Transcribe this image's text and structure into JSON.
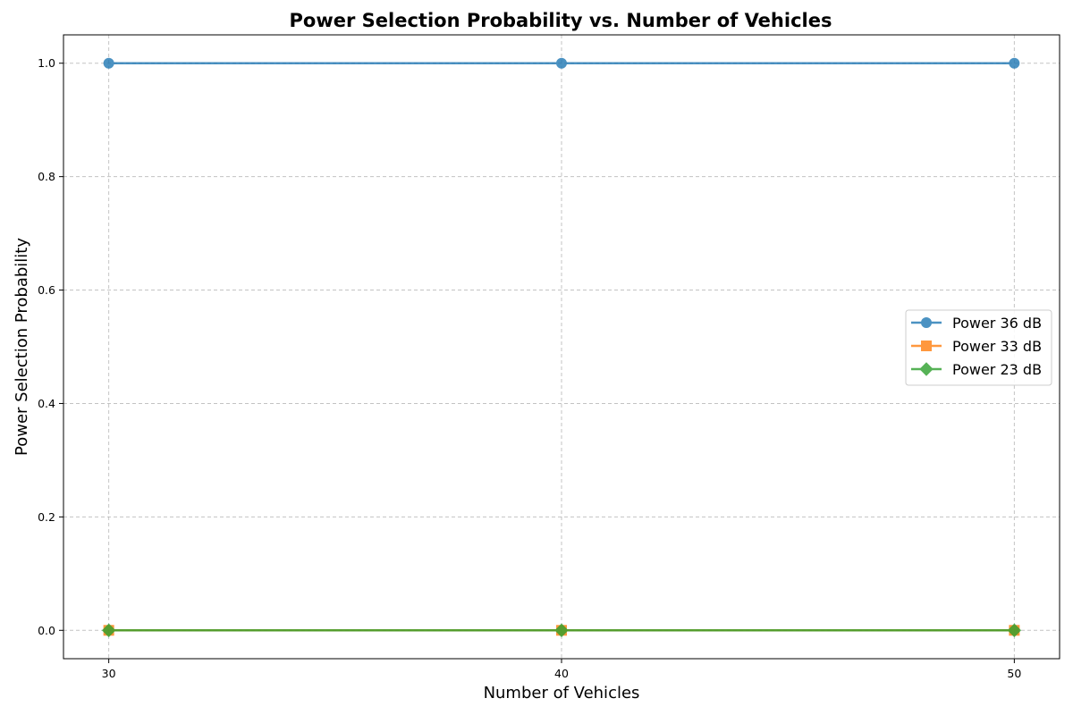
{
  "chart_data": {
    "type": "line",
    "title": "Power Selection Probability vs. Number of Vehicles",
    "xlabel": "Number of Vehicles",
    "ylabel": "Power Selection Probability",
    "x": [
      30,
      40,
      50
    ],
    "xticks": [
      "30",
      "40",
      "50"
    ],
    "yticks": [
      "0.0",
      "0.2",
      "0.4",
      "0.6",
      "0.8",
      "1.0"
    ],
    "xlim": [
      29,
      51
    ],
    "ylim": [
      -0.05,
      1.05
    ],
    "grid": true,
    "legend_position": "center-right",
    "series": [
      {
        "name": "Power 36 dB",
        "values": [
          1.0,
          1.0,
          1.0
        ],
        "color": "#1f77b4",
        "marker": "circle"
      },
      {
        "name": "Power 33 dB",
        "values": [
          0.0,
          0.0,
          0.0
        ],
        "color": "#ff7f0e",
        "marker": "square"
      },
      {
        "name": "Power 23 dB",
        "values": [
          0.0,
          0.0,
          0.0
        ],
        "color": "#2ca02c",
        "marker": "diamond"
      }
    ]
  }
}
